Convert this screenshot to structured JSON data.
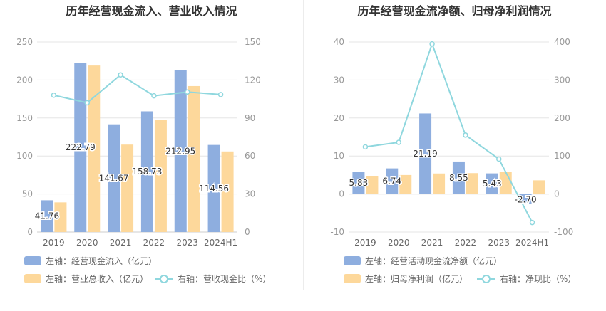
{
  "colors": {
    "bar1": "#8eaedf",
    "bar2": "#fdd89b",
    "line": "#8fd7de"
  },
  "chart_data": [
    {
      "type": "bar",
      "title": "历年经营现金流入、营业收入情况",
      "categories": [
        "2019",
        "2020",
        "2021",
        "2022",
        "2023",
        "2024H1"
      ],
      "left_axis": {
        "ylim": [
          0,
          250
        ],
        "ticks": [
          "0",
          "50",
          "100",
          "150",
          "200",
          "250"
        ]
      },
      "right_axis": {
        "ylim": [
          0,
          150
        ],
        "ticks": [
          "0",
          "30",
          "60",
          "90",
          "120",
          "150"
        ]
      },
      "series": [
        {
          "name": "左轴：经营现金流入（亿元）",
          "kind": "bar",
          "axis": "left",
          "values": [
            41.76,
            222.79,
            141.67,
            158.73,
            212.95,
            114.56
          ],
          "labels": [
            "41.76",
            "222.79",
            "141.67",
            "158.73",
            "212.95",
            "114.56"
          ]
        },
        {
          "name": "左轴：营业总收入（亿元）",
          "kind": "bar",
          "axis": "left",
          "values": [
            39,
            219,
            115,
            147,
            192,
            106
          ]
        },
        {
          "name": "右轴：营收现金比（%）",
          "kind": "line",
          "axis": "right",
          "values": [
            108,
            102,
            124,
            107.5,
            110.5,
            108.5
          ]
        }
      ]
    },
    {
      "type": "bar",
      "title": "历年经营现金流净额、归母净利润情况",
      "categories": [
        "2019",
        "2020",
        "2021",
        "2022",
        "2023",
        "2024H1"
      ],
      "left_axis": {
        "ylim": [
          -10,
          40
        ],
        "ticks": [
          "-10",
          "0",
          "10",
          "20",
          "30",
          "40"
        ]
      },
      "right_axis": {
        "ylim": [
          -100,
          400
        ],
        "ticks": [
          "-100",
          "0",
          "100",
          "200",
          "300",
          "400"
        ]
      },
      "series": [
        {
          "name": "左轴：经营活动现金流净额（亿元）",
          "kind": "bar",
          "axis": "left",
          "values": [
            5.83,
            6.74,
            21.19,
            8.55,
            5.43,
            -2.7
          ],
          "labels": [
            "5.83",
            "6.74",
            "21.19",
            "8.55",
            "5.43",
            "-2.70"
          ]
        },
        {
          "name": "左轴：归母净利润（亿元）",
          "kind": "bar",
          "axis": "left",
          "values": [
            4.7,
            5.0,
            5.4,
            5.5,
            5.9,
            3.6
          ]
        },
        {
          "name": "右轴：净现比（%）",
          "kind": "line",
          "axis": "right",
          "values": [
            124,
            136,
            395,
            155,
            92,
            -75
          ]
        }
      ]
    }
  ]
}
